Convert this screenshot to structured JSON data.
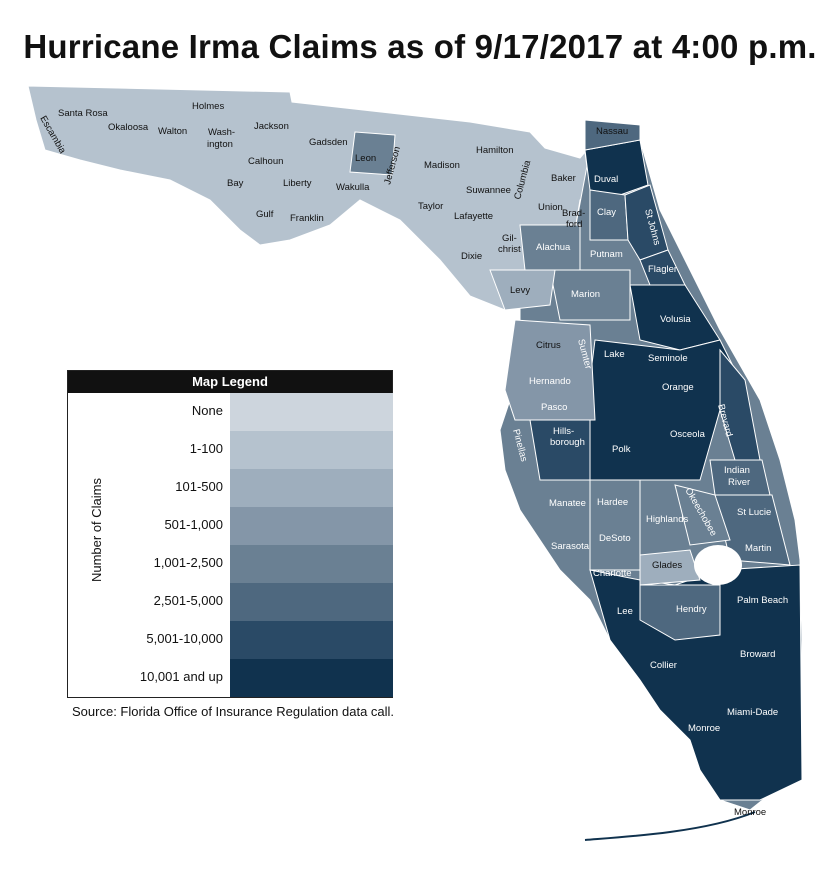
{
  "title": "Hurricane Irma Claims as of 9/17/2017 at 4:00 p.m.",
  "legend": {
    "heading": "Map Legend",
    "axis_label": "Number of Claims",
    "items": [
      {
        "label": "None",
        "color": "#cdd5dd"
      },
      {
        "label": "1-100",
        "color": "#b5c2ce"
      },
      {
        "label": "101-500",
        "color": "#9eaebd"
      },
      {
        "label": "501-1,000",
        "color": "#8496a8"
      },
      {
        "label": "1,001-2,500",
        "color": "#6a8093"
      },
      {
        "label": "2,501-5,000",
        "color": "#4e687f"
      },
      {
        "label": "5,001-10,000",
        "color": "#2a4a66"
      },
      {
        "label": "10,001 and up",
        "color": "#10324e"
      }
    ]
  },
  "source": "Source: Florida Office of Insurance Regulation data call.",
  "counties": [
    "Escambia",
    "Santa Rosa",
    "Okaloosa",
    "Walton",
    "Holmes",
    "Wash-",
    "ington",
    "Jackson",
    "Calhoun",
    "Bay",
    "Gulf",
    "Liberty",
    "Gadsden",
    "Leon",
    "Franklin",
    "Wakulla",
    "Jefferson",
    "Madison",
    "Taylor",
    "Hamilton",
    "Suwannee",
    "Columbia",
    "Lafayette",
    "Baker",
    "Union",
    "Brad-",
    "ford",
    "Nassau",
    "Duval",
    "Clay",
    "St Johns",
    "Gil-",
    "christ",
    "Dixie",
    "Alachua",
    "Putnam",
    "Flagler",
    "Levy",
    "Marion",
    "Volusia",
    "Citrus",
    "Sumter",
    "Lake",
    "Seminole",
    "Hernando",
    "Orange",
    "Pasco",
    "Brevard",
    "Hills-",
    "borough",
    "Osceola",
    "Polk",
    "Pinellas",
    "Indian",
    "River",
    "Manatee",
    "Hardee",
    "Okeechobee",
    "Highlands",
    "St Lucie",
    "Sarasota",
    "DeSoto",
    "Martin",
    "Charlotte",
    "Glades",
    "Lee",
    "Hendry",
    "Palm Beach",
    "Collier",
    "Broward",
    "Monroe",
    "Miami-Dade",
    "Monroe"
  ]
}
